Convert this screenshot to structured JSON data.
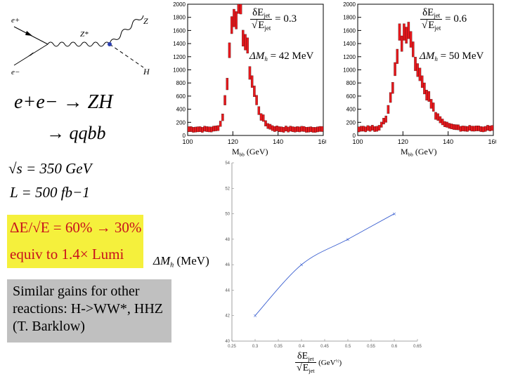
{
  "feynman": {
    "e_plus": "e+",
    "e_minus": "e−",
    "z_star": "Z*",
    "z": "Z",
    "h": "H"
  },
  "physics": {
    "reaction1": "e+e− → ZH",
    "reaction2": "→ qqbb",
    "sqrt_s": "√s = 350 GeV",
    "luminosity": "L = 500 fb−1"
  },
  "highlight": {
    "line1": "ΔE/√E = 60% → 30%",
    "line2": "equiv to  1.4× Lumi"
  },
  "note": {
    "text": "Similar gains for other reactions: H->WW*, HHZ  (T. Barklow)"
  },
  "colors": {
    "hist_fill": "#e8181c",
    "hist_edge": "#000000",
    "highlight_bg": "#f5f03c",
    "highlight_text": "#c8101c",
    "note_bg": "#c0c0c0",
    "line": "#3a5fd0"
  },
  "chart_data": [
    {
      "type": "bar",
      "name": "histogram-0.3",
      "title": "",
      "annotation_frac": "δEjet / √Ejet = 0.3",
      "annotation_delta": "ΔMh = 42 MeV",
      "frac_num": "δE",
      "frac_den": "E",
      "frac_sub": "jet",
      "frac_value": "= 0.3",
      "delta_label": "ΔM",
      "delta_sub": "h",
      "delta_value": "= 42 Me",
      "delta_unit": "V",
      "xlabel_main": "M",
      "xlabel_sub": "bb",
      "xlabel_unit": "(GeV)",
      "xlim": [
        100,
        160
      ],
      "ylim": [
        0,
        2000
      ],
      "xticks": [
        "100",
        "120",
        "140",
        "160"
      ],
      "yticks": [
        "0",
        "200",
        "400",
        "600",
        "800",
        "1000",
        "1200",
        "1400",
        "1600",
        "1800",
        "2000"
      ],
      "peak": 121,
      "peak_height": 1880,
      "sigma_left": 2.6,
      "sigma_right": 5.5,
      "background": 95
    },
    {
      "type": "bar",
      "name": "histogram-0.6",
      "title": "",
      "annotation_frac": "δEjet / √Ejet = 0.6",
      "annotation_delta": "ΔMh = 50 MeV",
      "frac_num": "δE",
      "frac_den": "E",
      "frac_sub": "jet",
      "frac_value": "= 0.6",
      "delta_label": "ΔM",
      "delta_sub": "h",
      "delta_value": "= 50 Me",
      "delta_unit": "V",
      "xlabel_main": "M",
      "xlabel_sub": "bb",
      "xlabel_unit": "(GeV)",
      "xlim": [
        100,
        160
      ],
      "ylim": [
        0,
        2000
      ],
      "xticks": [
        "100",
        "120",
        "140",
        "160"
      ],
      "yticks": [
        "0",
        "200",
        "400",
        "600",
        "800",
        "1000",
        "1200",
        "1400",
        "1600",
        "1800",
        "2000"
      ],
      "peak": 120,
      "peak_height": 1480,
      "sigma_left": 3.6,
      "sigma_right": 7.5,
      "background": 105
    },
    {
      "type": "line",
      "name": "resolution-vs-mass-error",
      "title": "",
      "x": [
        0.3,
        0.4,
        0.5,
        0.6
      ],
      "y": [
        42,
        46,
        48,
        50
      ],
      "xlim": [
        0.25,
        0.65
      ],
      "ylim": [
        40,
        54
      ],
      "xticks": [
        "0.25",
        "0.3",
        "0.35",
        "0.4",
        "0.45",
        "0.5",
        "0.55",
        "0.6",
        "0.65"
      ],
      "yticks": [
        "40",
        "42",
        "44",
        "46",
        "48",
        "50",
        "52",
        "54"
      ],
      "ylabel_main": "ΔM",
      "ylabel_sub": "h",
      "ylabel_unit": "(MeV)",
      "xlabel_num": "δE",
      "xlabel_den": "E",
      "xlabel_sub": "jet",
      "xlabel_unit": "(GeV",
      "xlabel_exp": "½",
      "xlabel_close": ")"
    }
  ]
}
